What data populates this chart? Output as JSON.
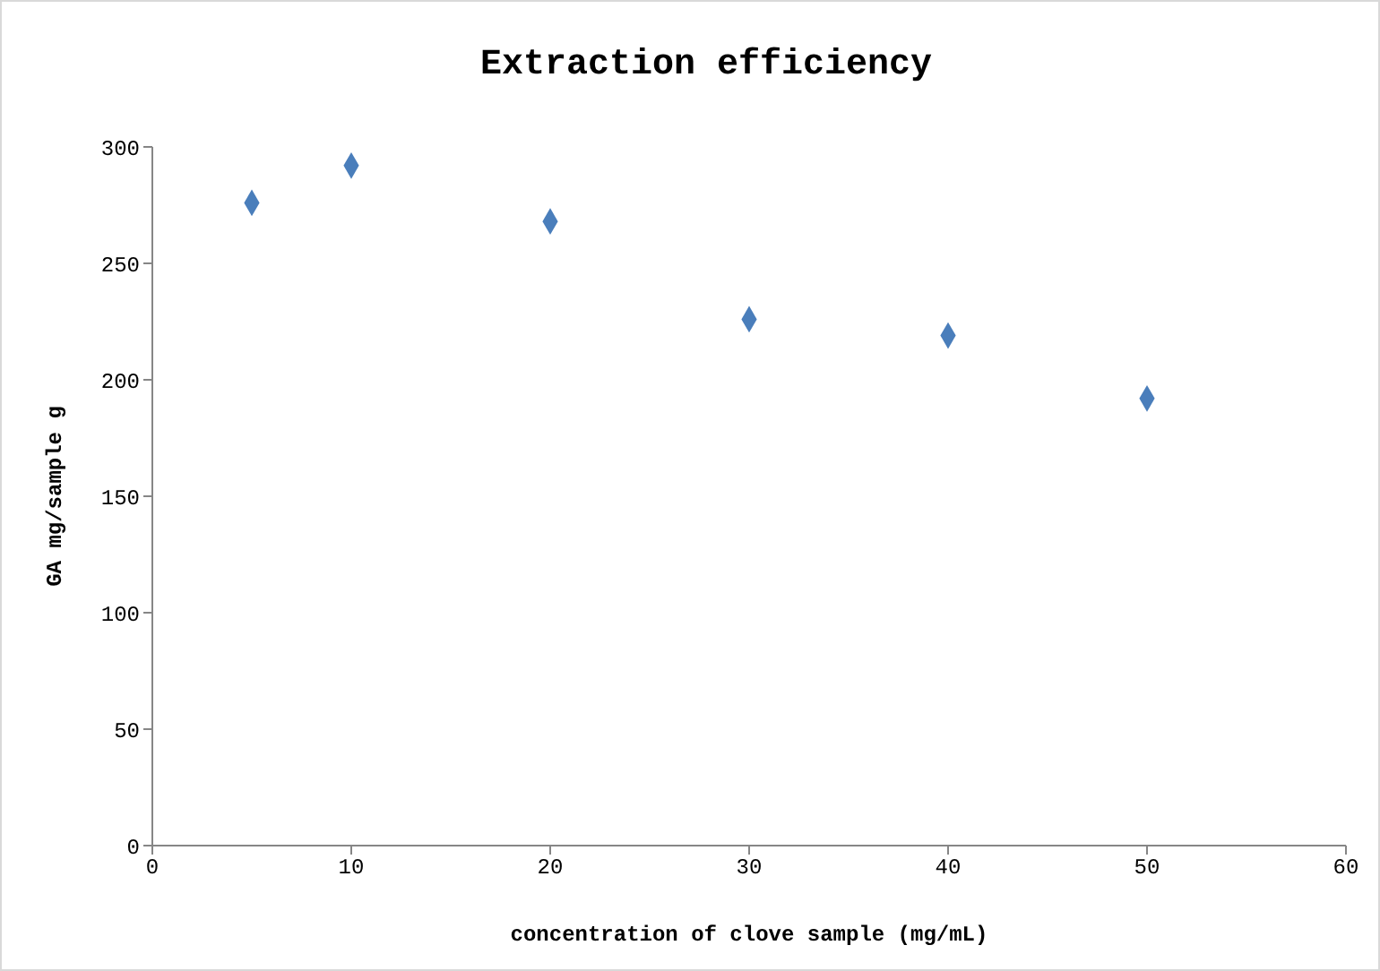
{
  "chart_data": {
    "type": "scatter",
    "title": "Extraction efficiency",
    "xlabel": "concentration of clove sample (mg/mL)",
    "ylabel": "GA mg/sample g",
    "x": [
      5,
      10,
      20,
      30,
      40,
      50
    ],
    "series": [
      {
        "color": "#4a7ebb",
        "values": [
          276,
          292,
          268,
          226,
          219,
          192
        ]
      }
    ],
    "xlim": [
      0,
      60
    ],
    "xticks": [
      0,
      10,
      20,
      30,
      40,
      50,
      60
    ],
    "ylim": [
      0,
      300
    ],
    "yticks": [
      0,
      50,
      100,
      150,
      200,
      250,
      300
    ],
    "grid": false,
    "legend": false,
    "marker": "diamond"
  }
}
